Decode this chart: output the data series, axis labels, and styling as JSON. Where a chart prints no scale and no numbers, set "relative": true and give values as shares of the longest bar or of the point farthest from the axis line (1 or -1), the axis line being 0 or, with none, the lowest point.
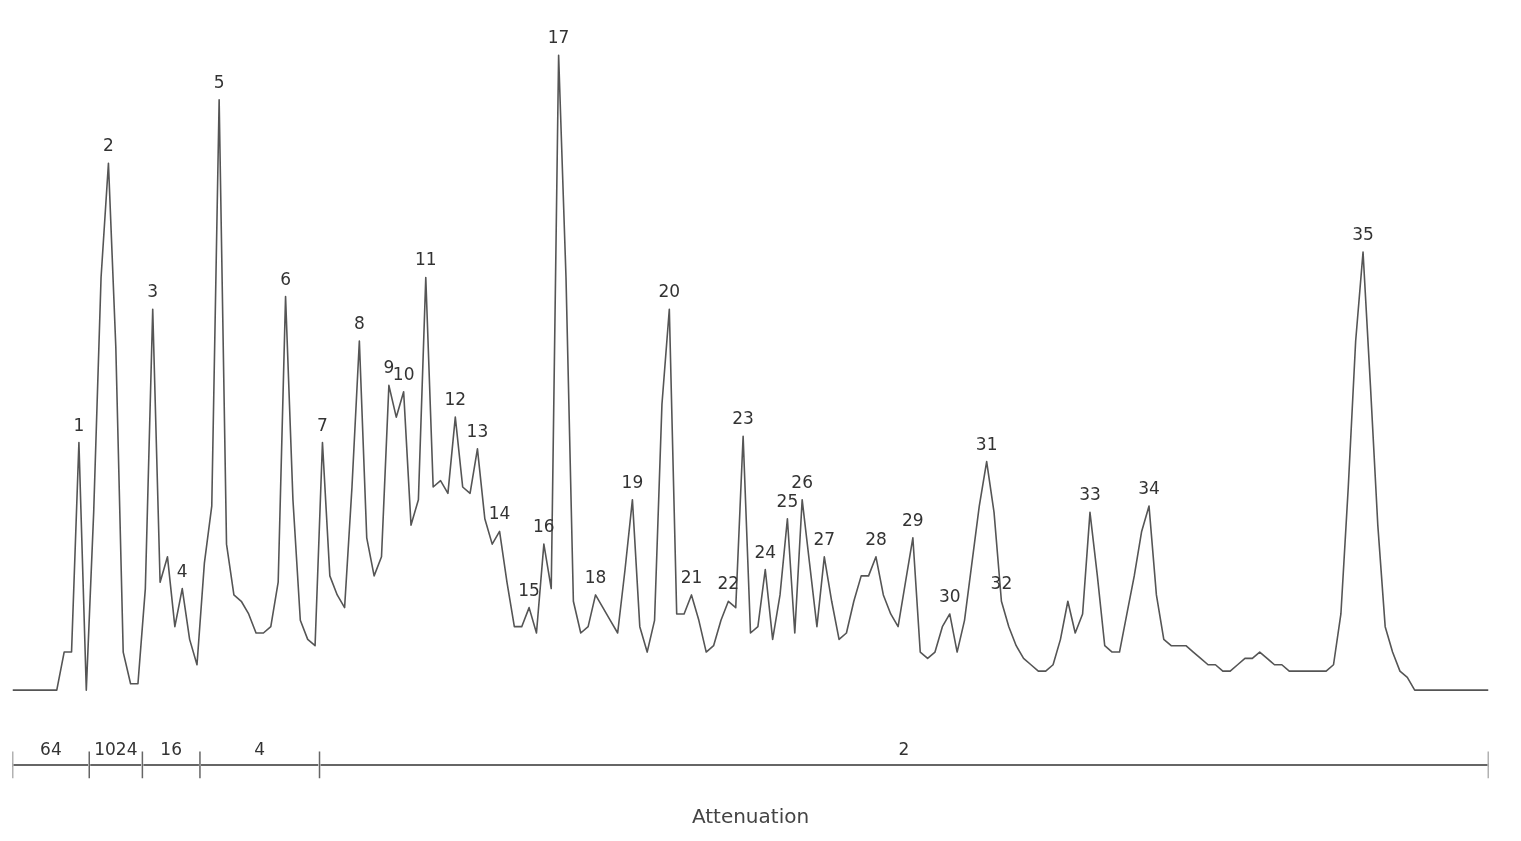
{
  "chart_data": [
    {
      "type": "line",
      "relative": true,
      "grid": false,
      "categories": [
        null,
        null,
        null,
        null,
        null,
        null,
        null,
        null,
        null,
        null,
        null,
        null,
        null,
        null,
        null,
        null,
        null,
        null,
        null,
        null,
        null,
        null,
        null,
        null,
        null,
        null,
        null,
        null,
        null,
        null,
        null,
        null,
        null,
        null,
        null,
        null,
        null,
        null,
        null,
        null,
        null,
        null,
        null,
        null,
        null,
        null,
        null,
        null,
        null,
        null,
        null,
        null,
        null,
        null,
        null,
        null,
        null,
        null,
        null,
        null,
        null,
        null,
        null,
        null,
        null,
        null,
        null,
        null,
        null,
        null,
        null,
        null,
        null,
        null,
        null,
        null,
        null,
        null,
        null,
        null,
        null,
        null,
        null,
        null,
        null,
        null,
        null,
        null,
        null,
        null,
        null,
        null,
        null,
        null,
        null,
        null,
        null,
        null,
        null,
        null,
        null,
        null,
        null,
        null,
        null,
        null,
        null,
        null,
        null,
        null,
        null,
        null,
        null,
        null,
        null,
        null,
        null,
        null,
        null,
        null,
        null,
        null,
        null,
        null,
        null,
        null,
        null,
        null,
        null,
        null,
        null,
        null,
        null,
        null,
        null,
        null,
        null,
        null,
        null,
        null,
        null,
        null,
        null,
        null,
        null,
        null,
        null,
        null,
        null,
        null,
        null,
        null,
        null,
        null,
        null,
        null,
        null,
        null,
        null,
        null,
        null,
        null,
        null,
        null,
        null,
        null,
        null,
        null,
        null,
        null,
        null,
        null,
        null,
        null,
        null,
        null,
        null,
        null,
        null,
        null,
        null,
        null,
        null,
        null,
        null,
        null,
        null,
        null,
        null,
        null,
        null,
        null,
        null,
        null,
        null,
        null,
        null,
        null,
        null,
        null,
        null
      ],
      "series": [
        {
          "color": "#555555",
          "values": [
            0,
            0,
            0,
            0,
            0,
            0,
            0,
            0.06,
            0.06,
            0.39,
            0,
            0.28,
            0.65,
            0.83,
            0.54,
            0.06,
            0.01,
            0.01,
            0.16,
            0.6,
            0.17,
            0.21,
            0.1,
            0.16,
            0.08,
            0.04,
            0.2,
            0.29,
            0.93,
            0.23,
            0.15,
            0.14,
            0.12,
            0.09,
            0.09,
            0.1,
            0.17,
            0.62,
            0.3,
            0.11,
            0.08,
            0.07,
            0.39,
            0.18,
            0.15,
            0.13,
            0.32,
            0.55,
            0.24,
            0.18,
            0.21,
            0.48,
            0.43,
            0.47,
            0.26,
            0.3,
            0.65,
            0.32,
            0.33,
            0.31,
            0.43,
            0.32,
            0.31,
            0.38,
            0.27,
            0.23,
            0.25,
            0.17,
            0.1,
            0.1,
            0.13,
            0.09,
            0.23,
            0.16,
            1,
            0.65,
            0.14,
            0.09,
            0.1,
            0.15,
            0.13,
            0.11,
            0.09,
            0.19,
            0.3,
            0.1,
            0.06,
            0.11,
            0.45,
            0.6,
            0.12,
            0.12,
            0.15,
            0.11,
            0.06,
            0.07,
            0.11,
            0.14,
            0.13,
            0.4,
            0.09,
            0.1,
            0.19,
            0.08,
            0.15,
            0.27,
            0.09,
            0.3,
            0.2,
            0.1,
            0.21,
            0.14,
            0.08,
            0.09,
            0.14,
            0.18,
            0.18,
            0.21,
            0.15,
            0.12,
            0.1,
            0.17,
            0.24,
            0.06,
            0.05,
            0.06,
            0.1,
            0.12,
            0.06,
            0.11,
            0.2,
            0.29,
            0.36,
            0.28,
            0.14,
            0.1,
            0.07,
            0.05,
            0.04,
            0.03,
            0.03,
            0.04,
            0.08,
            0.14,
            0.09,
            0.12,
            0.28,
            0.18,
            0.07,
            0.06,
            0.06,
            0.12,
            0.18,
            0.25,
            0.29,
            0.15,
            0.08,
            0.07,
            0.07,
            0.07,
            0.06,
            0.05,
            0.04,
            0.04,
            0.03,
            0.03,
            0.04,
            0.05,
            0.05,
            0.06,
            0.05,
            0.04,
            0.04,
            0.03,
            0.03,
            0.03,
            0.03,
            0.03,
            0.03,
            0.04,
            0.12,
            0.32,
            0.55,
            0.69,
            0.48,
            0.26,
            0.1,
            0.06,
            0.03,
            0.02,
            0,
            0,
            0,
            0,
            0,
            0,
            0,
            0,
            0,
            0,
            0
          ]
        }
      ],
      "annotations": [
        {
          "text": "1",
          "y": 0.39
        },
        {
          "text": "2",
          "y": 0.83
        },
        {
          "text": "3",
          "y": 0.6
        },
        {
          "text": "4",
          "y": 0.16
        },
        {
          "text": "5",
          "y": 0.93
        },
        {
          "text": "6",
          "y": 0.62
        },
        {
          "text": "7",
          "y": 0.39
        },
        {
          "text": "8",
          "y": 0.55
        },
        {
          "text": "9",
          "y": 0.48
        },
        {
          "text": "10",
          "y": 0.47
        },
        {
          "text": "11",
          "y": 0.65
        },
        {
          "text": "12",
          "y": 0.43
        },
        {
          "text": "13",
          "y": 0.38
        },
        {
          "text": "14",
          "y": 0.25
        },
        {
          "text": "15",
          "y": 0.13
        },
        {
          "text": "16",
          "y": 0.23
        },
        {
          "text": "17",
          "y": 1
        },
        {
          "text": "18",
          "y": 0.15
        },
        {
          "text": "19",
          "y": 0.3
        },
        {
          "text": "20",
          "y": 0.6
        },
        {
          "text": "21",
          "y": 0.15
        },
        {
          "text": "22",
          "y": 0.14
        },
        {
          "text": "23",
          "y": 0.4
        },
        {
          "text": "24",
          "y": 0.19
        },
        {
          "text": "25",
          "y": 0.27
        },
        {
          "text": "26",
          "y": 0.3
        },
        {
          "text": "27",
          "y": 0.21
        },
        {
          "text": "28",
          "y": 0.21
        },
        {
          "text": "29",
          "y": 0.24
        },
        {
          "text": "30",
          "y": 0.12
        },
        {
          "text": "31",
          "y": 0.36
        },
        {
          "text": "32",
          "y": 0.14
        },
        {
          "text": "33",
          "y": 0.28
        },
        {
          "text": "34",
          "y": 0.29
        },
        {
          "text": "35",
          "y": 0.69
        }
      ]
    },
    {
      "type": "bar",
      "orientation": "horizontal",
      "stacked": true,
      "relative": true,
      "xlabel": "Attenuation",
      "categories": [
        null
      ],
      "series": [
        {
          "name": "64",
          "color": "#666666",
          "values": [
            0.052
          ]
        },
        {
          "name": "1024",
          "color": "#666666",
          "values": [
            0.036
          ]
        },
        {
          "name": "16",
          "color": "#666666",
          "values": [
            0.039
          ]
        },
        {
          "name": "4",
          "color": "#666666",
          "values": [
            0.081
          ]
        },
        {
          "name": "2",
          "color": "#666666",
          "values": [
            0.792
          ]
        }
      ]
    }
  ]
}
